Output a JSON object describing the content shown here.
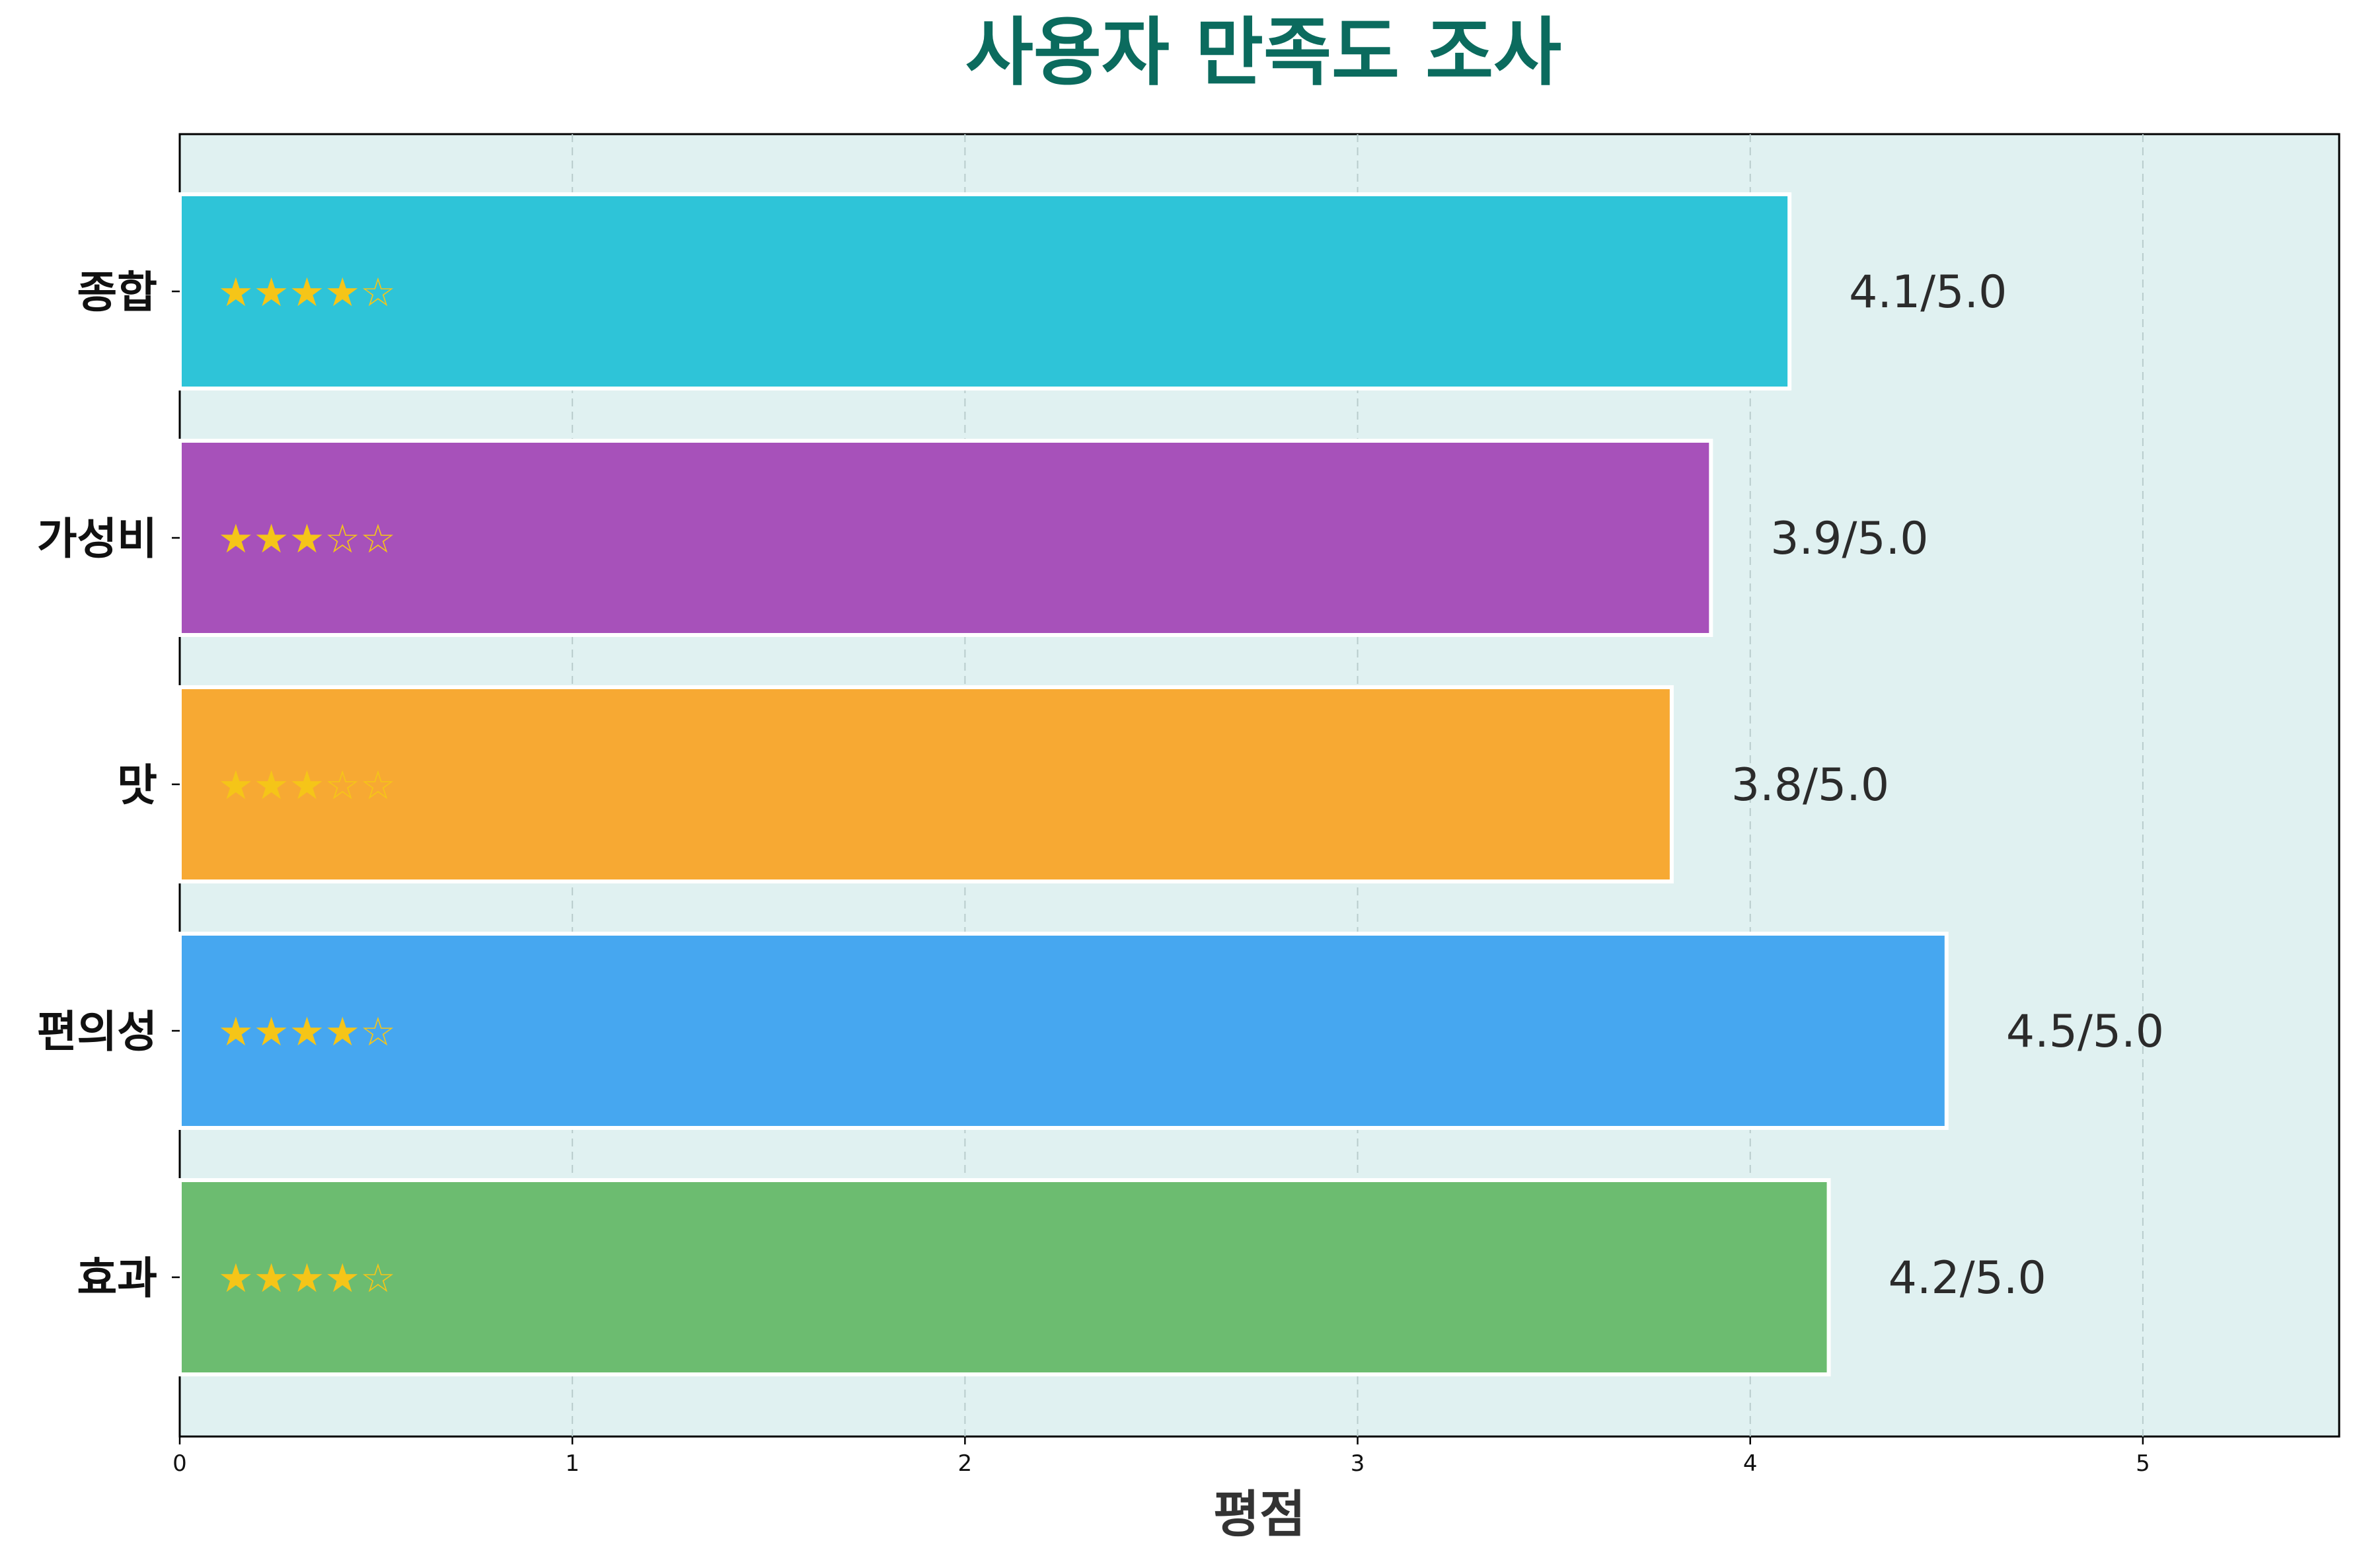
{
  "chart_data": {
    "type": "bar",
    "orientation": "horizontal",
    "title": "사용자 만족도 조사",
    "xlabel": "평점",
    "ylabel": "",
    "xlim": [
      0,
      5.5
    ],
    "xticks": [
      "0",
      "1",
      "2",
      "3",
      "4",
      "5"
    ],
    "grid": "vertical dashed",
    "categories": [
      "종합",
      "가성비",
      "맛",
      "편의성",
      "효과"
    ],
    "values": [
      4.1,
      3.9,
      3.8,
      4.5,
      4.2
    ],
    "value_labels": [
      "4.1/5.0",
      "3.9/5.0",
      "3.8/5.0",
      "4.5/5.0",
      "4.2/5.0"
    ],
    "star_labels": [
      "★★★★☆",
      "★★★☆☆",
      "★★★☆☆",
      "★★★★☆",
      "★★★★☆"
    ],
    "colors": [
      "#2EC4D8",
      "#A751BA",
      "#F7A933",
      "#46A7F0",
      "#6CBC70"
    ],
    "title_color": "#0B6B5E",
    "background_color": "#E0F1F1",
    "star_color": "#F5C518"
  }
}
